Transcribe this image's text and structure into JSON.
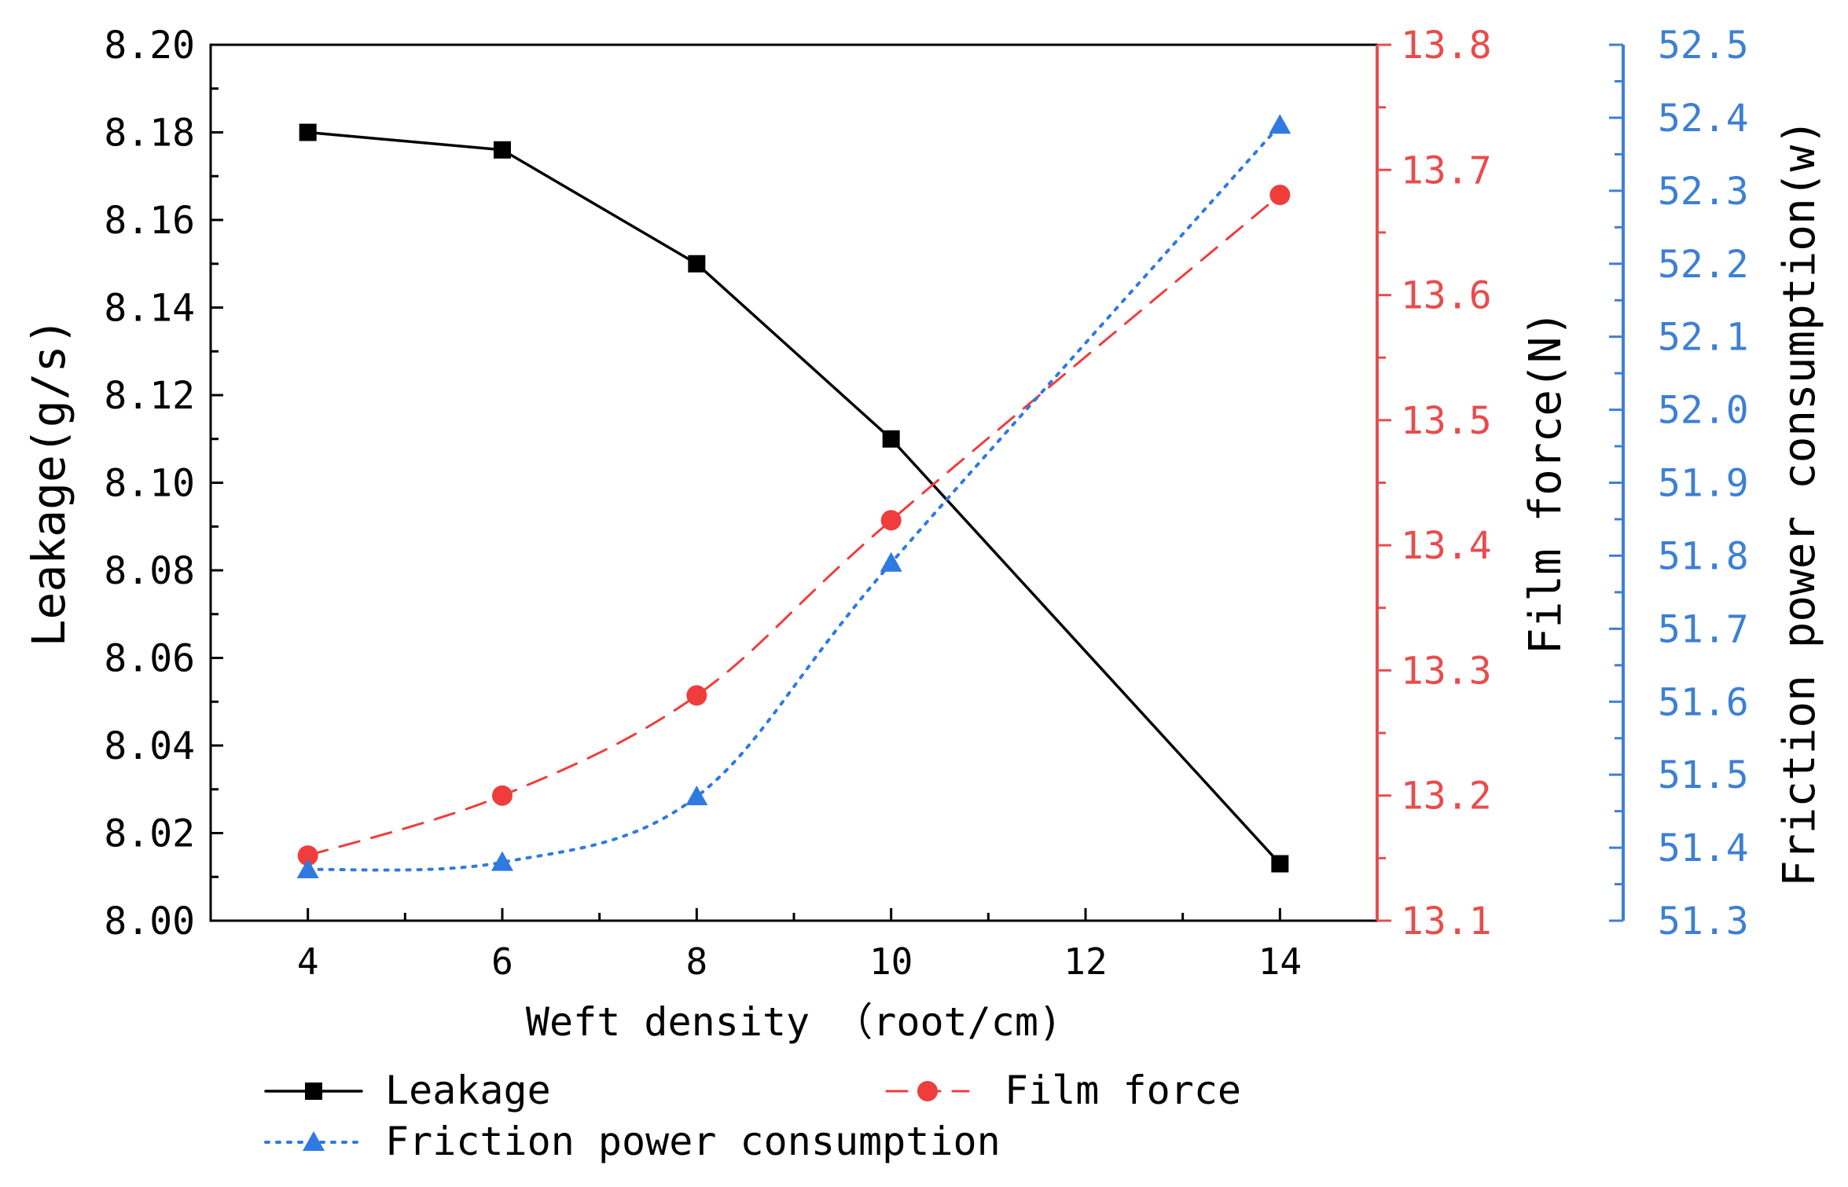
{
  "chart_data": {
    "type": "line",
    "title": "",
    "xlabel": "Weft density （root/cm)",
    "x": [
      4,
      6,
      8,
      10,
      14
    ],
    "xlim": [
      3,
      15
    ],
    "xticks": [
      "4",
      "6",
      "8",
      "10",
      "12",
      "14"
    ],
    "axes": {
      "left": {
        "label": "Leakage(g/s)",
        "lim": [
          8.0,
          8.2
        ],
        "ticks": [
          "8.00",
          "8.02",
          "8.04",
          "8.06",
          "8.08",
          "8.10",
          "8.12",
          "8.14",
          "8.16",
          "8.18",
          "8.20"
        ],
        "color": "#000000"
      },
      "right": {
        "label": "Film force(N)",
        "lim": [
          13.1,
          13.8
        ],
        "ticks": [
          "13.1",
          "13.2",
          "13.3",
          "13.4",
          "13.5",
          "13.6",
          "13.7",
          "13.8"
        ],
        "color": "#e84c4c"
      },
      "right2": {
        "label": "Friction power consumption(w)",
        "lim": [
          51.3,
          52.5
        ],
        "ticks": [
          "51.3",
          "51.4",
          "51.5",
          "51.6",
          "51.7",
          "51.8",
          "51.9",
          "52.0",
          "52.1",
          "52.2",
          "52.3",
          "52.4",
          "52.5"
        ],
        "color": "#3c7fd6"
      }
    },
    "series": [
      {
        "name": "Leakage",
        "axis": "left",
        "marker": "square",
        "line": "solid",
        "color": "#000000",
        "values": [
          8.18,
          8.176,
          8.15,
          8.11,
          8.013
        ]
      },
      {
        "name": "Film force",
        "axis": "right",
        "marker": "circle",
        "line": "dashed",
        "color": "#f03c3c",
        "values": [
          13.152,
          13.2,
          13.28,
          13.42,
          13.68
        ]
      },
      {
        "name": "Friction power consumption",
        "axis": "right2",
        "marker": "triangle",
        "line": "dotted",
        "color": "#2f7ae0",
        "values": [
          51.37,
          51.38,
          51.47,
          51.79,
          52.39
        ]
      }
    ],
    "legend": {
      "placement": "bottom",
      "entries": [
        "Leakage",
        "Film force",
        "Friction power consumption"
      ]
    }
  }
}
